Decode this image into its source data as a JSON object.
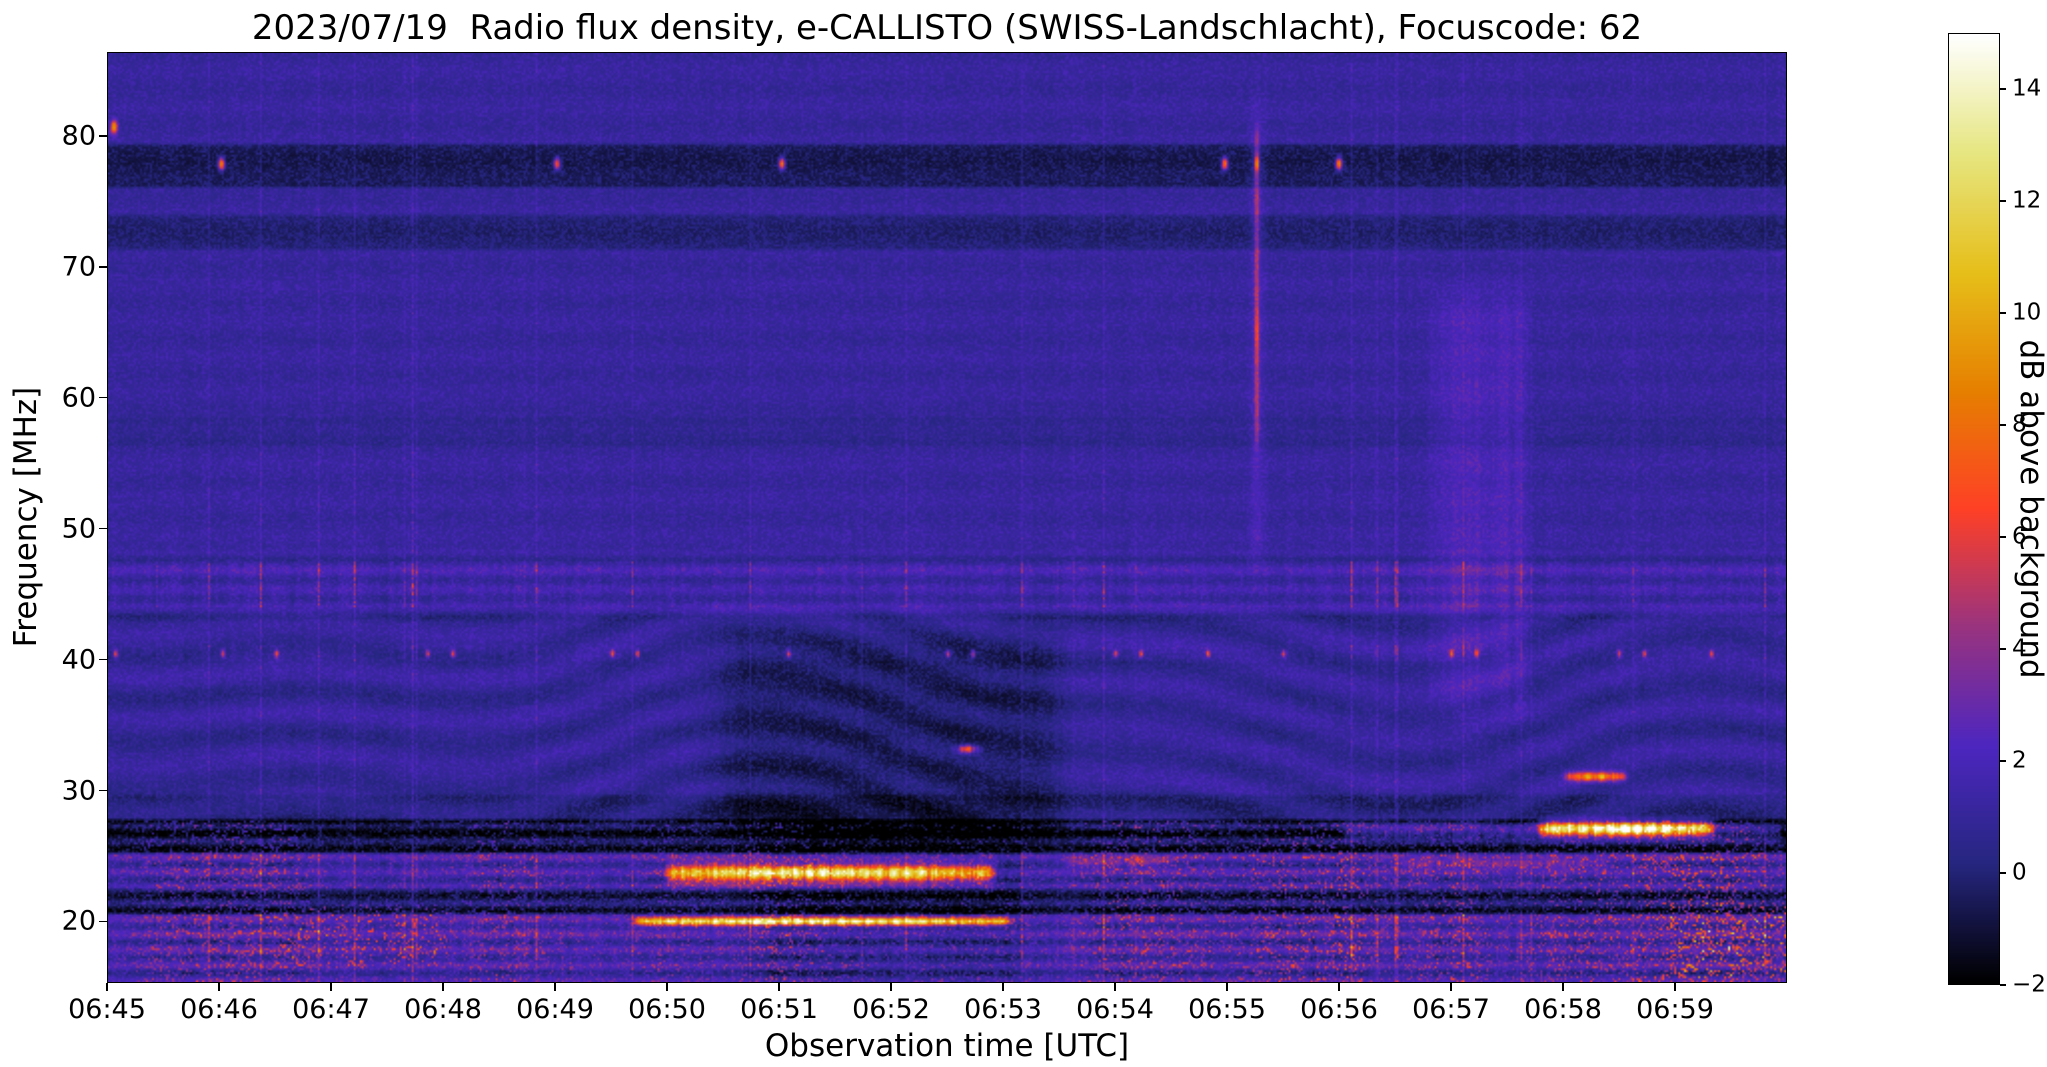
{
  "chart_data": {
    "type": "heatmap",
    "title": "2023/07/19  Radio flux density, e-CALLISTO (SWISS-Landschlacht), Focuscode: 62",
    "xlabel": "Observation time [UTC]",
    "ylabel": "Frequency [MHz]",
    "x_tick_labels": [
      "06:45",
      "06:46",
      "06:47",
      "06:48",
      "06:49",
      "06:50",
      "06:51",
      "06:52",
      "06:53",
      "06:54",
      "06:55",
      "06:56",
      "06:57",
      "06:58",
      "06:59"
    ],
    "x_span_minutes": 15,
    "y_ticks_mhz": [
      20,
      30,
      40,
      50,
      60,
      70,
      80
    ],
    "freq_top_mhz": 86.4,
    "freq_bottom_mhz": 15.3,
    "grid": false,
    "colorbar": {
      "label": "dB above background",
      "tick_values": [
        -2,
        0,
        2,
        4,
        6,
        8,
        10,
        12,
        14
      ],
      "tick_labels": [
        "−2",
        "0",
        "2",
        "4",
        "6",
        "8",
        "10",
        "12",
        "14"
      ],
      "value_range": [
        -2,
        15
      ]
    },
    "colormap_stops": [
      [
        0.0,
        0,
        0,
        0
      ],
      [
        0.125,
        38,
        38,
        128
      ],
      [
        0.25,
        77,
        38,
        191
      ],
      [
        0.375,
        153,
        51,
        128
      ],
      [
        0.5,
        255,
        64,
        38
      ],
      [
        0.625,
        230,
        128,
        0
      ],
      [
        0.75,
        230,
        191,
        26
      ],
      [
        0.875,
        230,
        230,
        128
      ],
      [
        1.0,
        255,
        255,
        255
      ]
    ],
    "features": {
      "background_db": 0.55,
      "dark_bands_mhz": [
        [
          76.4,
          79.3,
          -1.6
        ],
        [
          71.6,
          73.9,
          -1.1
        ],
        [
          56.6,
          58.4,
          -0.5
        ],
        [
          27.7,
          29.5,
          -0.7
        ],
        [
          25.4,
          27.6,
          -2.3
        ],
        [
          20.8,
          22.4,
          -1.9
        ]
      ],
      "speckle_bands_mhz": [
        [
          44,
          47.5,
          1.6
        ],
        [
          40,
          41.2,
          1.1
        ],
        [
          22.5,
          25.3,
          1.4
        ],
        [
          17,
          20.6,
          1.9
        ],
        [
          15,
          16.8,
          1.0
        ]
      ],
      "dot_row_78mhz": {
        "freq": 78.0,
        "times": [
          0.067,
          0.267,
          0.401,
          0.665,
          0.733
        ],
        "amp_db": [
          10,
          8,
          9,
          9,
          10
        ]
      },
      "dot_row_40mhz": {
        "freq": 40.5,
        "times": [
          0.004,
          0.068,
          0.1,
          0.19,
          0.205,
          0.3,
          0.315,
          0.405,
          0.5,
          0.515,
          0.6,
          0.615,
          0.655,
          0.7,
          0.8,
          0.815,
          0.9,
          0.915,
          0.955
        ],
        "amp_db": 5.5
      },
      "bursts": [
        {
          "name": "burst-23mhz",
          "freq": 23.7,
          "fwidth": 0.7,
          "t0": 0.337,
          "t1": 0.523,
          "amp_db": 12
        },
        {
          "name": "line-20mhz",
          "freq": 20.0,
          "fwidth": 0.3,
          "t0": 0.318,
          "t1": 0.533,
          "amp_db": 13
        },
        {
          "name": "blob-27mhz",
          "freq": 27.1,
          "fwidth": 0.55,
          "t0": 0.856,
          "t1": 0.952,
          "amp_db": 14
        },
        {
          "name": "wing-27mhz",
          "freq": 26.9,
          "fwidth": 0.5,
          "t0": 0.74,
          "t1": 0.99,
          "amp_db": 3.5
        },
        {
          "name": "dash-31mhz",
          "freq": 31.1,
          "fwidth": 0.35,
          "t0": 0.872,
          "t1": 0.9,
          "amp_db": 9
        },
        {
          "name": "line-24mhz-mid",
          "freq": 24.5,
          "fwidth": 0.3,
          "t0": 0.575,
          "t1": 0.63,
          "amp_db": 3
        },
        {
          "name": "dash-24mhz-right",
          "freq": 24.4,
          "fwidth": 0.3,
          "t0": 0.77,
          "t1": 0.89,
          "amp_db": 3
        },
        {
          "name": "dot-33mhz",
          "freq": 33.2,
          "fwidth": 0.3,
          "t0": 0.508,
          "t1": 0.514,
          "amp_db": 8
        }
      ],
      "vertical_streak": {
        "t": 0.684,
        "f0": 58,
        "f1": 79,
        "amp_db": 3.2,
        "tip_freq": 78,
        "tip_amp_db": 7
      },
      "faint_vertical_band": {
        "t0": 0.795,
        "t1": 0.838,
        "f0": 38,
        "f1": 66,
        "amp_db": 1.3
      },
      "ripple_band_mhz": {
        "f0": 28,
        "f1": 43
      },
      "dark_patch": {
        "t0": 0.385,
        "t1": 0.545,
        "f0": 27.6,
        "f1": 41,
        "amp_db": -1.2
      },
      "left_speckle_patch": {
        "t0": 0.115,
        "t1": 0.195,
        "f0": 17,
        "f1": 20.8,
        "amp_db": 5
      },
      "corner_speckle": {
        "t0": 0.93,
        "t1": 0.995,
        "f0": 16,
        "f1": 21,
        "amp_db": 7
      },
      "topleft_dot": {
        "t": 0.003,
        "freq": 80.8,
        "amp_db": 9
      }
    }
  }
}
